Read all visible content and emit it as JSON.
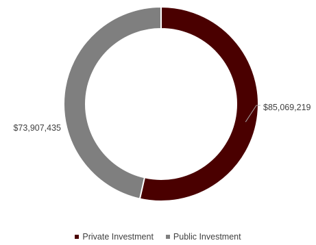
{
  "chart_data": {
    "type": "pie",
    "donut": true,
    "title": "",
    "categories": [
      "Private Investment",
      "Public Investment"
    ],
    "values": [
      85069219,
      73907435
    ],
    "value_labels": [
      "$85,069,219",
      "$73,907,435"
    ],
    "colors": [
      "#4a0000",
      "#7f7f7f"
    ],
    "legend": {
      "position": "bottom",
      "entries": [
        "Private Investment",
        "Public Investment"
      ]
    }
  }
}
